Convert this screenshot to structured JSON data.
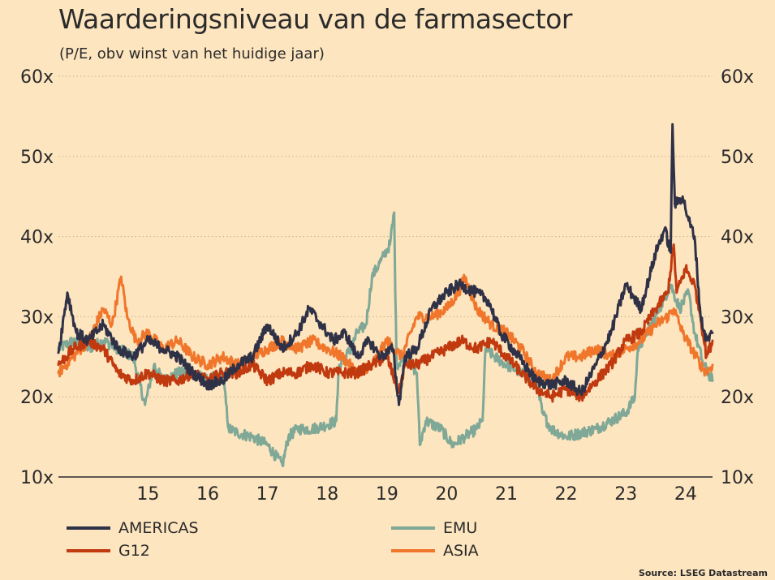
{
  "title": "Waarderingsniveau van de farmasector",
  "subtitle": "(P/E, obv winst van het huidige jaar)",
  "source": "Source: LSEG Datastream",
  "chart_data": {
    "type": "line",
    "x_start": 2014.0,
    "x_end": 2024.95,
    "x_tick_values": [
      2015,
      2016,
      2017,
      2018,
      2019,
      2020,
      2021,
      2022,
      2023,
      2024
    ],
    "x_tick_labels": [
      "15",
      "16",
      "17",
      "18",
      "19",
      "20",
      "21",
      "22",
      "23",
      "24"
    ],
    "ylim": [
      10,
      60
    ],
    "y_ticks": [
      10,
      20,
      30,
      40,
      50,
      60
    ],
    "y_tick_labels": [
      "10x",
      "20x",
      "30x",
      "40x",
      "50x",
      "60x"
    ],
    "grid": true,
    "legend_position": "bottom",
    "series": [
      {
        "name": "AMERICAS",
        "color": "#2f3147",
        "points": [
          [
            2014.0,
            25.5
          ],
          [
            2014.15,
            33
          ],
          [
            2014.3,
            28
          ],
          [
            2014.5,
            27
          ],
          [
            2014.75,
            29
          ],
          [
            2015.0,
            26
          ],
          [
            2015.25,
            25
          ],
          [
            2015.5,
            27
          ],
          [
            2015.75,
            26
          ],
          [
            2016.0,
            25
          ],
          [
            2016.25,
            23
          ],
          [
            2016.5,
            21.5
          ],
          [
            2016.75,
            22
          ],
          [
            2017.0,
            24
          ],
          [
            2017.25,
            25
          ],
          [
            2017.5,
            29
          ],
          [
            2017.75,
            26
          ],
          [
            2018.0,
            28
          ],
          [
            2018.2,
            31
          ],
          [
            2018.4,
            29
          ],
          [
            2018.6,
            27
          ],
          [
            2018.8,
            28
          ],
          [
            2019.0,
            25
          ],
          [
            2019.2,
            27
          ],
          [
            2019.4,
            25
          ],
          [
            2019.6,
            26
          ],
          [
            2019.7,
            19
          ],
          [
            2019.8,
            25
          ],
          [
            2020.0,
            26
          ],
          [
            2020.25,
            31
          ],
          [
            2020.5,
            33
          ],
          [
            2020.7,
            34
          ],
          [
            2021.0,
            33
          ],
          [
            2021.2,
            32
          ],
          [
            2021.4,
            28
          ],
          [
            2021.6,
            26
          ],
          [
            2021.8,
            24
          ],
          [
            2022.0,
            22
          ],
          [
            2022.25,
            21.5
          ],
          [
            2022.5,
            22
          ],
          [
            2022.75,
            20.5
          ],
          [
            2023.0,
            24
          ],
          [
            2023.25,
            28
          ],
          [
            2023.5,
            34
          ],
          [
            2023.75,
            31
          ],
          [
            2024.0,
            38
          ],
          [
            2024.15,
            41
          ],
          [
            2024.25,
            38
          ],
          [
            2024.28,
            54
          ],
          [
            2024.32,
            44
          ],
          [
            2024.45,
            45
          ],
          [
            2024.55,
            42
          ],
          [
            2024.65,
            40
          ],
          [
            2024.75,
            30
          ],
          [
            2024.85,
            27
          ],
          [
            2024.95,
            28
          ]
        ]
      },
      {
        "name": "G12",
        "color": "#c0390f",
        "points": [
          [
            2014.0,
            24
          ],
          [
            2014.25,
            26
          ],
          [
            2014.5,
            27
          ],
          [
            2014.75,
            26
          ],
          [
            2015.0,
            23
          ],
          [
            2015.25,
            22
          ],
          [
            2015.5,
            23
          ],
          [
            2015.75,
            22
          ],
          [
            2016.0,
            22
          ],
          [
            2016.25,
            23
          ],
          [
            2016.5,
            22
          ],
          [
            2016.75,
            23
          ],
          [
            2017.0,
            23
          ],
          [
            2017.25,
            24
          ],
          [
            2017.5,
            22
          ],
          [
            2017.75,
            23
          ],
          [
            2018.0,
            23
          ],
          [
            2018.25,
            24
          ],
          [
            2018.5,
            23
          ],
          [
            2018.75,
            23
          ],
          [
            2019.0,
            23
          ],
          [
            2019.25,
            24
          ],
          [
            2019.5,
            25
          ],
          [
            2019.7,
            20.5
          ],
          [
            2019.8,
            24
          ],
          [
            2020.0,
            24
          ],
          [
            2020.25,
            25
          ],
          [
            2020.5,
            26
          ],
          [
            2020.75,
            27
          ],
          [
            2021.0,
            26
          ],
          [
            2021.25,
            27
          ],
          [
            2021.5,
            25
          ],
          [
            2021.75,
            23
          ],
          [
            2022.0,
            21
          ],
          [
            2022.25,
            20
          ],
          [
            2022.5,
            21
          ],
          [
            2022.75,
            20
          ],
          [
            2023.0,
            22
          ],
          [
            2023.25,
            24
          ],
          [
            2023.5,
            27
          ],
          [
            2023.75,
            28
          ],
          [
            2024.0,
            31
          ],
          [
            2024.2,
            33
          ],
          [
            2024.3,
            39
          ],
          [
            2024.35,
            33
          ],
          [
            2024.5,
            36
          ],
          [
            2024.65,
            34
          ],
          [
            2024.75,
            30
          ],
          [
            2024.85,
            25
          ],
          [
            2024.95,
            27
          ]
        ]
      },
      {
        "name": "EMU",
        "color": "#7fa897",
        "points": [
          [
            2014.0,
            26
          ],
          [
            2014.25,
            27
          ],
          [
            2014.5,
            26
          ],
          [
            2014.75,
            27
          ],
          [
            2015.0,
            26
          ],
          [
            2015.25,
            25
          ],
          [
            2015.45,
            19
          ],
          [
            2015.6,
            24
          ],
          [
            2015.75,
            22
          ],
          [
            2016.0,
            23
          ],
          [
            2016.25,
            23
          ],
          [
            2016.5,
            22
          ],
          [
            2016.75,
            23
          ],
          [
            2016.85,
            16
          ],
          [
            2017.0,
            15.5
          ],
          [
            2017.25,
            15
          ],
          [
            2017.5,
            14
          ],
          [
            2017.75,
            11.5
          ],
          [
            2017.85,
            15
          ],
          [
            2018.0,
            16
          ],
          [
            2018.25,
            16
          ],
          [
            2018.5,
            16.5
          ],
          [
            2018.65,
            17
          ],
          [
            2018.7,
            24
          ],
          [
            2018.9,
            26
          ],
          [
            2019.0,
            28
          ],
          [
            2019.15,
            29
          ],
          [
            2019.25,
            35
          ],
          [
            2019.4,
            37
          ],
          [
            2019.55,
            39
          ],
          [
            2019.62,
            43
          ],
          [
            2019.66,
            24
          ],
          [
            2019.8,
            25
          ],
          [
            2020.0,
            23
          ],
          [
            2020.05,
            14
          ],
          [
            2020.15,
            17
          ],
          [
            2020.4,
            16
          ],
          [
            2020.6,
            14
          ],
          [
            2020.8,
            15
          ],
          [
            2021.0,
            16
          ],
          [
            2021.1,
            17
          ],
          [
            2021.15,
            26
          ],
          [
            2021.3,
            25
          ],
          [
            2021.5,
            24
          ],
          [
            2021.75,
            23
          ],
          [
            2022.0,
            22
          ],
          [
            2022.1,
            18
          ],
          [
            2022.25,
            16
          ],
          [
            2022.5,
            15
          ],
          [
            2022.75,
            15.5
          ],
          [
            2023.0,
            16
          ],
          [
            2023.25,
            17
          ],
          [
            2023.5,
            18
          ],
          [
            2023.65,
            20
          ],
          [
            2023.7,
            26
          ],
          [
            2023.85,
            28
          ],
          [
            2024.0,
            30
          ],
          [
            2024.25,
            34
          ],
          [
            2024.4,
            31
          ],
          [
            2024.55,
            33
          ],
          [
            2024.65,
            28
          ],
          [
            2024.8,
            24
          ],
          [
            2024.95,
            22
          ]
        ]
      },
      {
        "name": "ASIA",
        "color": "#f0762c",
        "points": [
          [
            2014.0,
            23
          ],
          [
            2014.25,
            25
          ],
          [
            2014.5,
            27
          ],
          [
            2014.75,
            31
          ],
          [
            2014.9,
            29
          ],
          [
            2015.05,
            35
          ],
          [
            2015.15,
            30
          ],
          [
            2015.3,
            27
          ],
          [
            2015.5,
            28
          ],
          [
            2015.75,
            26
          ],
          [
            2016.0,
            27
          ],
          [
            2016.25,
            25
          ],
          [
            2016.5,
            24
          ],
          [
            2016.75,
            25
          ],
          [
            2017.0,
            24
          ],
          [
            2017.25,
            25
          ],
          [
            2017.5,
            26
          ],
          [
            2017.75,
            27
          ],
          [
            2018.0,
            26
          ],
          [
            2018.25,
            27
          ],
          [
            2018.5,
            26
          ],
          [
            2018.75,
            25
          ],
          [
            2019.0,
            23
          ],
          [
            2019.25,
            24
          ],
          [
            2019.5,
            27
          ],
          [
            2019.75,
            25
          ],
          [
            2020.0,
            30
          ],
          [
            2020.25,
            30
          ],
          [
            2020.5,
            31
          ],
          [
            2020.7,
            33
          ],
          [
            2020.8,
            35
          ],
          [
            2021.0,
            31
          ],
          [
            2021.25,
            29
          ],
          [
            2021.5,
            28
          ],
          [
            2021.75,
            26
          ],
          [
            2022.0,
            23
          ],
          [
            2022.25,
            22
          ],
          [
            2022.5,
            25
          ],
          [
            2022.75,
            25
          ],
          [
            2023.0,
            26
          ],
          [
            2023.25,
            25
          ],
          [
            2023.5,
            26
          ],
          [
            2023.75,
            27
          ],
          [
            2024.0,
            29
          ],
          [
            2024.2,
            30
          ],
          [
            2024.3,
            31
          ],
          [
            2024.45,
            28
          ],
          [
            2024.6,
            26
          ],
          [
            2024.75,
            24
          ],
          [
            2024.85,
            23
          ],
          [
            2024.95,
            24
          ]
        ]
      }
    ]
  }
}
